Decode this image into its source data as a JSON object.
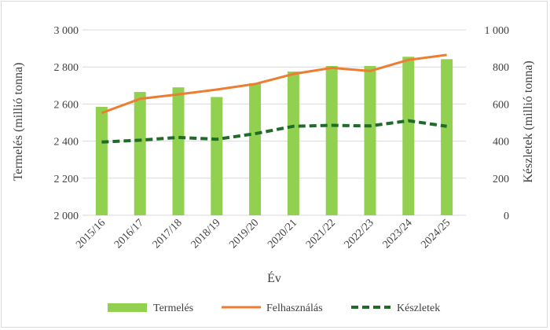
{
  "chart_data": {
    "type": "bar",
    "categories": [
      "2015/16",
      "2016/17",
      "2017/18",
      "2018/19",
      "2019/20",
      "2020/21",
      "2021/22",
      "2022/23",
      "2023/24",
      "2024/25"
    ],
    "series": [
      {
        "name": "Termelés",
        "type": "bar",
        "axis": "left",
        "color": "#92d050",
        "values": [
          2585,
          2665,
          2690,
          2638,
          2712,
          2775,
          2805,
          2805,
          2855,
          2842
        ]
      },
      {
        "name": "Felhasználás",
        "type": "line",
        "axis": "left",
        "color": "#ed7d31",
        "values": [
          2552,
          2628,
          2652,
          2678,
          2708,
          2762,
          2795,
          2778,
          2838,
          2865
        ]
      },
      {
        "name": "Készletek",
        "type": "line-dashed",
        "axis": "right",
        "color": "#1e6b2a",
        "values": [
          395,
          405,
          420,
          410,
          440,
          480,
          485,
          482,
          510,
          480
        ]
      }
    ],
    "xlabel": "Év",
    "ylabel": "Termelés (millió tonna)",
    "y2label": "Készletek (millió tonna)",
    "ylim": [
      2000,
      3000
    ],
    "y2lim": [
      0,
      1000
    ],
    "yticks": [
      "2 000",
      "2 200",
      "2 400",
      "2 600",
      "2 800",
      "3 000"
    ],
    "y2ticks": [
      "0",
      "200",
      "400",
      "600",
      "800",
      "1 000"
    ],
    "grid": true,
    "legend": "bottom"
  }
}
